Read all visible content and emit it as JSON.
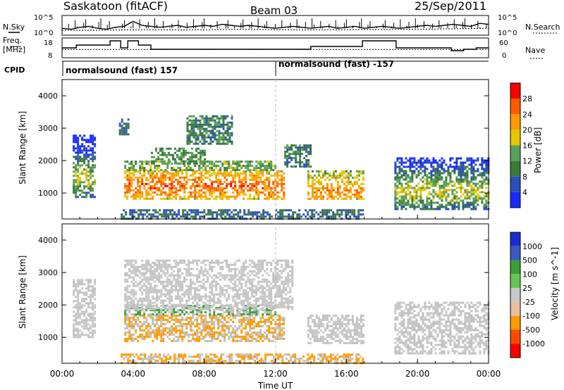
{
  "header": {
    "station": "Saskatoon (fitACF)",
    "beam": "Beam 03",
    "date": "25/Sep/2011"
  },
  "strip_labels": {
    "nsky": "N.Sky",
    "freq_line1": "Freq.",
    "freq_line2": "[MHz]",
    "cpid": "CPID",
    "nsearch": "N.Search",
    "nave": "Nave"
  },
  "cpid_segments": [
    {
      "label": "normalsound (fast) 157",
      "start_hour": 0.0
    },
    {
      "label": "normalsound (fast) -157",
      "start_hour": 12.0
    }
  ],
  "scale_colors": {
    "power": [
      "#1a2bff",
      "#2a4fbf",
      "#3a7a3a",
      "#5aa05a",
      "#e6c800",
      "#ff9a00",
      "#ff5a00",
      "#ff0000"
    ],
    "velocity": [
      "#ff0000",
      "#ff4a00",
      "#ff9a00",
      "#e8c0a0",
      "#c8c8c8",
      "#64c850",
      "#3aa03a",
      "#3a5abf",
      "#1a2bd0"
    ],
    "ground_scatter": "#c0c0c0"
  },
  "chart_data": [
    {
      "type": "line",
      "title": "N.Sky / N.Search",
      "ylabel": "N.Sky",
      "y2label": "N.Search",
      "yticks": [
        "10^5",
        "10^0"
      ],
      "y2ticks": [
        "10^5",
        "10^0"
      ],
      "xlim": [
        0,
        24
      ],
      "series": [
        {
          "name": "N.Sky",
          "x": [
            0,
            0.5,
            1,
            1.5,
            2,
            2.5,
            3,
            3.5,
            4,
            4.5,
            5,
            5.5,
            6,
            6.5,
            7,
            7.5,
            8,
            8.5,
            9,
            9.5,
            10,
            10.5,
            11,
            11.5,
            12,
            12.5,
            13,
            13.5,
            14,
            14.5,
            15,
            15.5,
            16,
            16.5,
            17,
            17.5,
            18,
            18.5,
            19,
            19.5,
            20,
            20.5,
            21,
            21.5,
            22,
            22.5,
            23,
            23.5,
            24
          ],
          "y": [
            0.35,
            0.3,
            0.4,
            0.45,
            0.35,
            0.3,
            0.4,
            0.45,
            0.7,
            0.5,
            0.45,
            0.4,
            0.45,
            0.5,
            0.4,
            0.45,
            0.5,
            0.45,
            0.55,
            0.5,
            0.45,
            0.5,
            0.45,
            0.4,
            0.35,
            0.4,
            0.45,
            0.4,
            0.35,
            0.4,
            0.45,
            0.35,
            0.4,
            0.45,
            0.35,
            0.4,
            0.45,
            0.4,
            0.35,
            0.4,
            0.45,
            0.5,
            0.45,
            0.5,
            0.55,
            0.5,
            0.45,
            0.6,
            0.55
          ]
        },
        {
          "name": "N.Search",
          "x": [
            0,
            2,
            4,
            6,
            8,
            10,
            12,
            14,
            16,
            18,
            20,
            22,
            24
          ],
          "y": [
            0.25,
            0.25,
            0.28,
            0.27,
            0.28,
            0.3,
            0.28,
            0.27,
            0.28,
            0.29,
            0.3,
            0.32,
            0.35
          ]
        }
      ]
    },
    {
      "type": "line",
      "title": "Frequency / Nave",
      "ylabel": "Freq. [MHz]",
      "yticks": [
        18,
        8
      ],
      "y2label": "Nave",
      "y2ticks": [
        60,
        0
      ],
      "xlim": [
        0,
        24
      ],
      "series": [
        {
          "name": "Freq.",
          "x": [
            0,
            0.8,
            0.8,
            2.7,
            2.7,
            3.3,
            3.3,
            3.7,
            3.7,
            4.3,
            4.3,
            5,
            5,
            12.7,
            12.7,
            14,
            14,
            16.9,
            16.9,
            18.8,
            18.8,
            21.9,
            21.9,
            22.6,
            22.6,
            23.3,
            23.3,
            24
          ],
          "y": [
            13,
            13,
            15,
            15,
            18,
            18,
            13,
            13,
            18,
            18,
            15,
            15,
            12,
            12,
            12,
            12,
            14,
            14,
            18,
            18,
            13,
            13,
            11,
            11,
            12,
            12,
            13,
            13
          ]
        },
        {
          "name": "Nave",
          "x": [
            0,
            24
          ],
          "y": [
            24,
            24
          ]
        }
      ]
    },
    {
      "type": "heatmap",
      "title": "Power",
      "xlabel": "",
      "ylabel": "Slant Range [km]",
      "xlim": [
        0,
        24
      ],
      "ylim": [
        200,
        4500
      ],
      "yticks": [
        1000,
        2000,
        3000,
        4000
      ],
      "colorbar": {
        "label": "Power [dB]",
        "ticks": [
          4,
          8,
          12,
          16,
          20,
          24,
          28
        ],
        "range": [
          0,
          32
        ]
      },
      "regions": [
        {
          "t0": 0.6,
          "t1": 1.8,
          "r0": 900,
          "r1": 2800,
          "band_center": 1500,
          "level": 18
        },
        {
          "t0": 3.2,
          "t1": 3.7,
          "r0": 2800,
          "r1": 3300,
          "level": 8
        },
        {
          "t0": 3.5,
          "t1": 12.5,
          "r0": 800,
          "r1": 1700,
          "band_center": 1250,
          "level": 26
        },
        {
          "t0": 3.5,
          "t1": 12,
          "r0": 1700,
          "r1": 2000,
          "level": 14
        },
        {
          "t0": 5,
          "t1": 8,
          "r0": 1900,
          "r1": 2400,
          "level": 12
        },
        {
          "t0": 7,
          "t1": 9.5,
          "r0": 2500,
          "r1": 3400,
          "level": 10
        },
        {
          "t0": 12.5,
          "t1": 14,
          "r0": 1800,
          "r1": 2500,
          "level": 10
        },
        {
          "t0": 13.8,
          "t1": 16.9,
          "r0": 800,
          "r1": 1700,
          "band_center": 1100,
          "level": 24
        },
        {
          "t0": 18.7,
          "t1": 24,
          "r0": 500,
          "r1": 2100,
          "band_center": 1100,
          "level": 18
        },
        {
          "t0": 3.3,
          "t1": 16.9,
          "r0": 200,
          "r1": 500,
          "level": 8
        }
      ]
    },
    {
      "type": "heatmap",
      "title": "Velocity",
      "xlabel": "Time UT",
      "ylabel": "Slant Range [km]",
      "xlim": [
        0,
        24
      ],
      "ylim": [
        200,
        4500
      ],
      "xticks": [
        "00:00",
        "04:00",
        "08:00",
        "12:00",
        "16:00",
        "20:00",
        "00:00"
      ],
      "yticks": [
        1000,
        2000,
        3000,
        4000
      ],
      "colorbar": {
        "label": "Velocity [m s^-1]",
        "ticks": [
          1000,
          500,
          100,
          25,
          -25,
          -100,
          -500,
          -1000
        ]
      },
      "regions": [
        {
          "t0": 0.6,
          "t1": 1.8,
          "r0": 1000,
          "r1": 2800,
          "level": 0
        },
        {
          "t0": 3.5,
          "t1": 12.5,
          "r0": 900,
          "r1": 1700,
          "level": -300
        },
        {
          "t0": 3.5,
          "t1": 12,
          "r0": 1700,
          "r1": 2000,
          "level": 200
        },
        {
          "t0": 3.5,
          "t1": 13,
          "r0": 1900,
          "r1": 3400,
          "level": 0
        },
        {
          "t0": 13.8,
          "t1": 16.9,
          "r0": 800,
          "r1": 1700,
          "level": 0
        },
        {
          "t0": 18.7,
          "t1": 24,
          "r0": 500,
          "r1": 2100,
          "level": 0
        },
        {
          "t0": 3.3,
          "t1": 16.9,
          "r0": 200,
          "r1": 500,
          "level": -150
        }
      ]
    }
  ]
}
